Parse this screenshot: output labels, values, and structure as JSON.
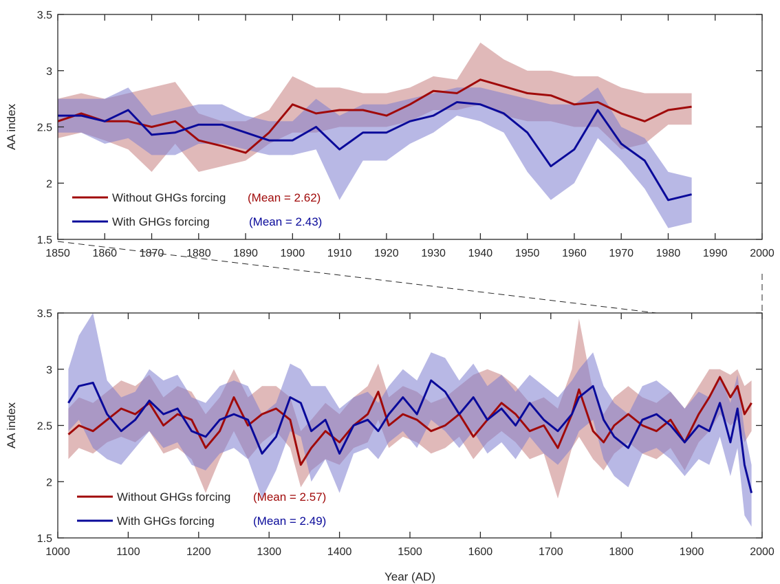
{
  "colors": {
    "without": "#a00a0a",
    "without_band": "#c77f7f",
    "with": "#0a0a9a",
    "with_band": "#7d7dcf",
    "axis": "#262626"
  },
  "chart_data": [
    {
      "type": "line",
      "panel": "top",
      "ylabel": "AA index",
      "xlabel": "",
      "xlim": [
        1850,
        2000
      ],
      "ylim": [
        1.5,
        3.5
      ],
      "xticks": [
        "1850",
        "1860",
        "1870",
        "1880",
        "1890",
        "1900",
        "1910",
        "1920",
        "1930",
        "1940",
        "1950",
        "1960",
        "1970",
        "1980",
        "1990",
        "2000"
      ],
      "yticks": [
        "1.5",
        "2",
        "2.5",
        "3",
        "3.5"
      ],
      "grid": false,
      "legend_position": "bottom-left",
      "x": [
        1850,
        1855,
        1860,
        1865,
        1870,
        1875,
        1880,
        1885,
        1890,
        1895,
        1900,
        1905,
        1910,
        1915,
        1920,
        1925,
        1930,
        1935,
        1940,
        1945,
        1950,
        1955,
        1960,
        1965,
        1970,
        1975,
        1980,
        1985
      ],
      "series": [
        {
          "name": "Without GHGs forcing",
          "mean_label": "(Mean = 2.62)",
          "values": [
            2.55,
            2.62,
            2.55,
            2.55,
            2.5,
            2.55,
            2.38,
            2.33,
            2.27,
            2.45,
            2.7,
            2.62,
            2.65,
            2.65,
            2.6,
            2.7,
            2.82,
            2.8,
            2.92,
            2.86,
            2.8,
            2.78,
            2.7,
            2.72,
            2.62,
            2.55,
            2.65,
            2.68
          ],
          "lower": [
            2.4,
            2.45,
            2.38,
            2.3,
            2.1,
            2.35,
            2.1,
            2.15,
            2.2,
            2.35,
            2.45,
            2.45,
            2.5,
            2.5,
            2.5,
            2.55,
            2.65,
            2.65,
            2.7,
            2.6,
            2.55,
            2.55,
            2.5,
            2.5,
            2.3,
            2.35,
            2.52,
            2.52
          ],
          "upper": [
            2.75,
            2.8,
            2.75,
            2.8,
            2.85,
            2.9,
            2.62,
            2.55,
            2.55,
            2.65,
            2.95,
            2.85,
            2.85,
            2.8,
            2.8,
            2.85,
            2.95,
            2.92,
            3.25,
            3.1,
            3.0,
            3.0,
            2.95,
            2.95,
            2.85,
            2.8,
            2.8,
            2.8
          ]
        },
        {
          "name": "With GHGs forcing",
          "mean_label": "(Mean = 2.43)",
          "values": [
            2.6,
            2.6,
            2.55,
            2.65,
            2.43,
            2.45,
            2.52,
            2.52,
            2.45,
            2.38,
            2.38,
            2.5,
            2.3,
            2.45,
            2.45,
            2.55,
            2.6,
            2.72,
            2.7,
            2.62,
            2.45,
            2.15,
            2.3,
            2.65,
            2.35,
            2.2,
            1.85,
            1.9
          ],
          "lower": [
            2.45,
            2.45,
            2.35,
            2.4,
            2.25,
            2.25,
            2.35,
            2.35,
            2.3,
            2.25,
            2.25,
            2.3,
            1.85,
            2.2,
            2.2,
            2.35,
            2.45,
            2.6,
            2.55,
            2.45,
            2.1,
            1.85,
            2.0,
            2.4,
            2.2,
            1.95,
            1.6,
            1.65
          ],
          "upper": [
            2.75,
            2.75,
            2.75,
            2.85,
            2.6,
            2.65,
            2.7,
            2.7,
            2.6,
            2.55,
            2.55,
            2.75,
            2.6,
            2.7,
            2.7,
            2.75,
            2.8,
            2.85,
            2.85,
            2.8,
            2.75,
            2.7,
            2.7,
            2.85,
            2.5,
            2.4,
            2.1,
            2.05
          ]
        }
      ]
    },
    {
      "type": "line",
      "panel": "bottom",
      "ylabel": "AA index",
      "xlabel": "Year (AD)",
      "xlim": [
        1000,
        2000
      ],
      "ylim": [
        1.5,
        3.5
      ],
      "xticks": [
        "1000",
        "1100",
        "1200",
        "1300",
        "1400",
        "1500",
        "1600",
        "1700",
        "1800",
        "1900",
        "2000"
      ],
      "yticks": [
        "1.5",
        "2",
        "2.5",
        "3",
        "3.5"
      ],
      "grid": false,
      "legend_position": "bottom-left",
      "x": [
        1015,
        1030,
        1050,
        1070,
        1090,
        1110,
        1130,
        1150,
        1170,
        1190,
        1210,
        1230,
        1250,
        1270,
        1290,
        1310,
        1330,
        1345,
        1360,
        1380,
        1400,
        1420,
        1440,
        1455,
        1470,
        1490,
        1510,
        1530,
        1550,
        1570,
        1590,
        1610,
        1630,
        1650,
        1670,
        1690,
        1710,
        1730,
        1740,
        1760,
        1775,
        1790,
        1810,
        1830,
        1850,
        1870,
        1890,
        1910,
        1925,
        1940,
        1955,
        1965,
        1975,
        1985
      ],
      "series": [
        {
          "name": "Without GHGs forcing",
          "mean_label": "(Mean = 2.57)",
          "values": [
            2.42,
            2.5,
            2.45,
            2.55,
            2.65,
            2.6,
            2.7,
            2.5,
            2.6,
            2.55,
            2.3,
            2.45,
            2.75,
            2.5,
            2.6,
            2.65,
            2.55,
            2.15,
            2.3,
            2.45,
            2.35,
            2.5,
            2.6,
            2.8,
            2.5,
            2.6,
            2.55,
            2.45,
            2.5,
            2.6,
            2.4,
            2.55,
            2.7,
            2.6,
            2.45,
            2.5,
            2.3,
            2.6,
            2.82,
            2.45,
            2.35,
            2.5,
            2.6,
            2.5,
            2.45,
            2.55,
            2.35,
            2.6,
            2.75,
            2.93,
            2.75,
            2.85,
            2.6,
            2.7
          ],
          "lower": [
            2.2,
            2.3,
            2.25,
            2.35,
            2.4,
            2.35,
            2.45,
            2.25,
            2.3,
            2.2,
            1.9,
            2.2,
            2.45,
            2.2,
            2.35,
            2.45,
            2.3,
            1.95,
            2.1,
            2.2,
            2.15,
            2.3,
            2.35,
            2.55,
            2.3,
            2.4,
            2.35,
            2.25,
            2.3,
            2.4,
            2.2,
            2.35,
            2.45,
            2.35,
            2.2,
            2.25,
            1.85,
            2.3,
            2.4,
            2.2,
            2.1,
            2.25,
            2.35,
            2.25,
            2.2,
            2.3,
            2.1,
            2.35,
            2.45,
            2.6,
            2.5,
            2.55,
            2.35,
            2.45
          ],
          "upper": [
            2.65,
            2.75,
            2.7,
            2.8,
            2.9,
            2.85,
            2.95,
            2.75,
            2.85,
            2.8,
            2.6,
            2.75,
            3.0,
            2.75,
            2.85,
            2.85,
            2.75,
            2.45,
            2.55,
            2.7,
            2.6,
            2.75,
            2.85,
            3.05,
            2.75,
            2.85,
            2.8,
            2.7,
            2.75,
            2.85,
            2.95,
            3.0,
            2.95,
            2.85,
            2.7,
            2.75,
            2.65,
            3.0,
            3.45,
            2.8,
            2.6,
            2.75,
            2.85,
            2.75,
            2.7,
            2.8,
            2.65,
            2.85,
            3.0,
            3.0,
            2.95,
            3.0,
            2.85,
            2.9
          ]
        },
        {
          "name": "With GHGs forcing",
          "mean_label": "(Mean = 2.49)",
          "values": [
            2.7,
            2.85,
            2.88,
            2.6,
            2.45,
            2.55,
            2.72,
            2.6,
            2.65,
            2.45,
            2.4,
            2.55,
            2.6,
            2.55,
            2.25,
            2.4,
            2.75,
            2.7,
            2.45,
            2.55,
            2.25,
            2.5,
            2.55,
            2.45,
            2.6,
            2.75,
            2.6,
            2.9,
            2.8,
            2.6,
            2.75,
            2.55,
            2.65,
            2.5,
            2.7,
            2.55,
            2.45,
            2.6,
            2.75,
            2.85,
            2.55,
            2.4,
            2.3,
            2.55,
            2.6,
            2.5,
            2.35,
            2.5,
            2.45,
            2.7,
            2.35,
            2.65,
            2.15,
            1.9
          ],
          "lower": [
            2.45,
            2.55,
            2.3,
            2.2,
            2.15,
            2.3,
            2.45,
            2.3,
            2.35,
            2.15,
            2.1,
            2.25,
            2.3,
            2.2,
            1.85,
            2.1,
            2.45,
            2.4,
            2.0,
            2.2,
            1.9,
            2.25,
            2.3,
            2.2,
            2.35,
            2.45,
            2.3,
            2.55,
            2.45,
            2.3,
            2.45,
            2.25,
            2.35,
            2.2,
            2.4,
            2.25,
            2.15,
            2.3,
            2.45,
            2.55,
            2.2,
            2.05,
            1.95,
            2.25,
            2.3,
            2.2,
            2.05,
            2.2,
            2.15,
            2.4,
            2.05,
            2.3,
            1.7,
            1.6
          ],
          "upper": [
            3.0,
            3.3,
            3.5,
            2.9,
            2.75,
            2.8,
            3.0,
            2.9,
            2.95,
            2.75,
            2.7,
            2.85,
            2.9,
            2.85,
            2.6,
            2.7,
            3.05,
            3.0,
            2.85,
            2.85,
            2.65,
            2.75,
            2.8,
            2.7,
            2.85,
            3.0,
            2.9,
            3.15,
            3.1,
            2.9,
            3.05,
            2.85,
            2.95,
            2.8,
            2.95,
            2.85,
            2.75,
            2.9,
            3.0,
            3.15,
            2.85,
            2.7,
            2.6,
            2.85,
            2.9,
            2.8,
            2.65,
            2.8,
            2.75,
            2.95,
            2.7,
            2.95,
            2.45,
            2.15
          ]
        }
      ]
    }
  ]
}
